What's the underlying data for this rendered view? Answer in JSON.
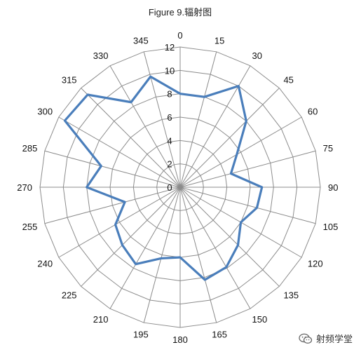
{
  "chart_data": {
    "type": "radar",
    "title": "Figure 9.辐射图",
    "angles": [
      0,
      15,
      30,
      45,
      60,
      75,
      90,
      105,
      120,
      135,
      150,
      165,
      180,
      195,
      210,
      225,
      240,
      255,
      270,
      285,
      300,
      315,
      330,
      345
    ],
    "angle_labels": [
      "0",
      "15",
      "30",
      "45",
      "60",
      "75",
      "90",
      "105",
      "120",
      "135",
      "150",
      "165",
      "180",
      "195",
      "210",
      "225",
      "240",
      "255",
      "270",
      "285",
      "300",
      "315",
      "330",
      "345"
    ],
    "radial_ticks": [
      0,
      2,
      4,
      6,
      8,
      10,
      12
    ],
    "radial_tick_labels": [
      "0",
      "2",
      "4",
      "6",
      "8",
      "10",
      "12"
    ],
    "rmax": 12,
    "grid": true,
    "series": [
      {
        "values": [
          8.0,
          8.0,
          10.0,
          8.0,
          5.6,
          4.5,
          7.0,
          6.8,
          6.0,
          7.0,
          7.9,
          8.2,
          6.0,
          6.3,
          7.6,
          7.0,
          6.4,
          4.9,
          8.0,
          7.0,
          11.4,
          11.2,
          8.4,
          9.8
        ],
        "color": "#4a7ebb"
      }
    ]
  },
  "watermark": {
    "text": "射频学堂"
  },
  "colors": {
    "grid": "#8c8c8c",
    "line": "#4a7ebb"
  }
}
